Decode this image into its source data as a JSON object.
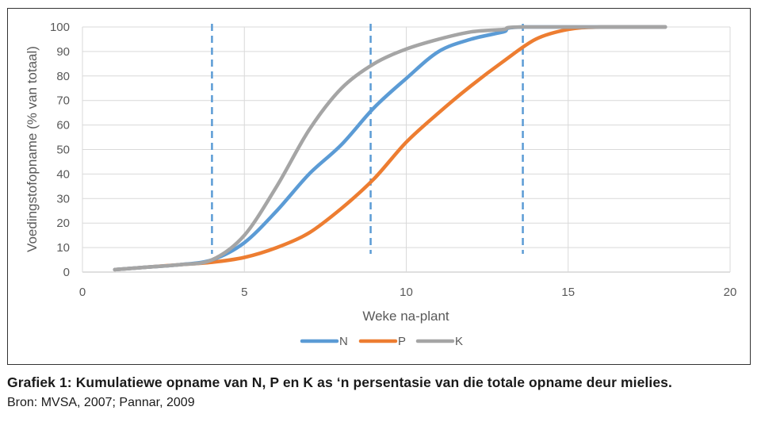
{
  "caption": "Grafiek 1: Kumulatiewe opname van N, P en K as ‘n persentasie van die totale opname deur mielies.",
  "source": "Bron: MVSA, 2007; Pannar, 2009",
  "chart_data": {
    "type": "line",
    "xlabel": "Weke na-plant",
    "ylabel": "Voedingstofopname (% van totaal)",
    "xlim": [
      0,
      20
    ],
    "ylim": [
      0,
      100
    ],
    "x_ticks": [
      0,
      5,
      10,
      15,
      20
    ],
    "y_ticks": [
      0,
      10,
      20,
      30,
      40,
      50,
      60,
      70,
      80,
      90,
      100
    ],
    "grid": "vertical and horizontal",
    "legend_position": "bottom",
    "vertical_reference_lines": [
      4,
      8.9,
      13.6
    ],
    "reference_line_color": "#5B9BD5",
    "series": [
      {
        "name": "N",
        "color": "#5B9BD5",
        "points": [
          [
            1,
            1
          ],
          [
            2,
            2
          ],
          [
            3,
            3
          ],
          [
            4,
            5
          ],
          [
            5,
            12
          ],
          [
            6,
            25
          ],
          [
            7,
            40
          ],
          [
            8,
            52
          ],
          [
            9,
            67
          ],
          [
            10,
            79
          ],
          [
            11,
            90
          ],
          [
            12,
            95
          ],
          [
            13,
            98
          ],
          [
            13.6,
            100
          ],
          [
            18,
            100
          ]
        ]
      },
      {
        "name": "P",
        "color": "#ED7D31",
        "points": [
          [
            1,
            1
          ],
          [
            2,
            2
          ],
          [
            3,
            3
          ],
          [
            4,
            4
          ],
          [
            5,
            6
          ],
          [
            6,
            10
          ],
          [
            7,
            16
          ],
          [
            8,
            26
          ],
          [
            9,
            38
          ],
          [
            10,
            53
          ],
          [
            11,
            65
          ],
          [
            12,
            76
          ],
          [
            13,
            86
          ],
          [
            14,
            95
          ],
          [
            15,
            99
          ],
          [
            16,
            100
          ],
          [
            18,
            100
          ]
        ]
      },
      {
        "name": "K",
        "color": "#A5A5A5",
        "points": [
          [
            1,
            1
          ],
          [
            2,
            2
          ],
          [
            3,
            3
          ],
          [
            4,
            5
          ],
          [
            5,
            15
          ],
          [
            6,
            35
          ],
          [
            7,
            58
          ],
          [
            8,
            75
          ],
          [
            9,
            85
          ],
          [
            10,
            91
          ],
          [
            11,
            95
          ],
          [
            12,
            98
          ],
          [
            13,
            99
          ],
          [
            13.6,
            100
          ],
          [
            18,
            100
          ]
        ]
      }
    ]
  }
}
